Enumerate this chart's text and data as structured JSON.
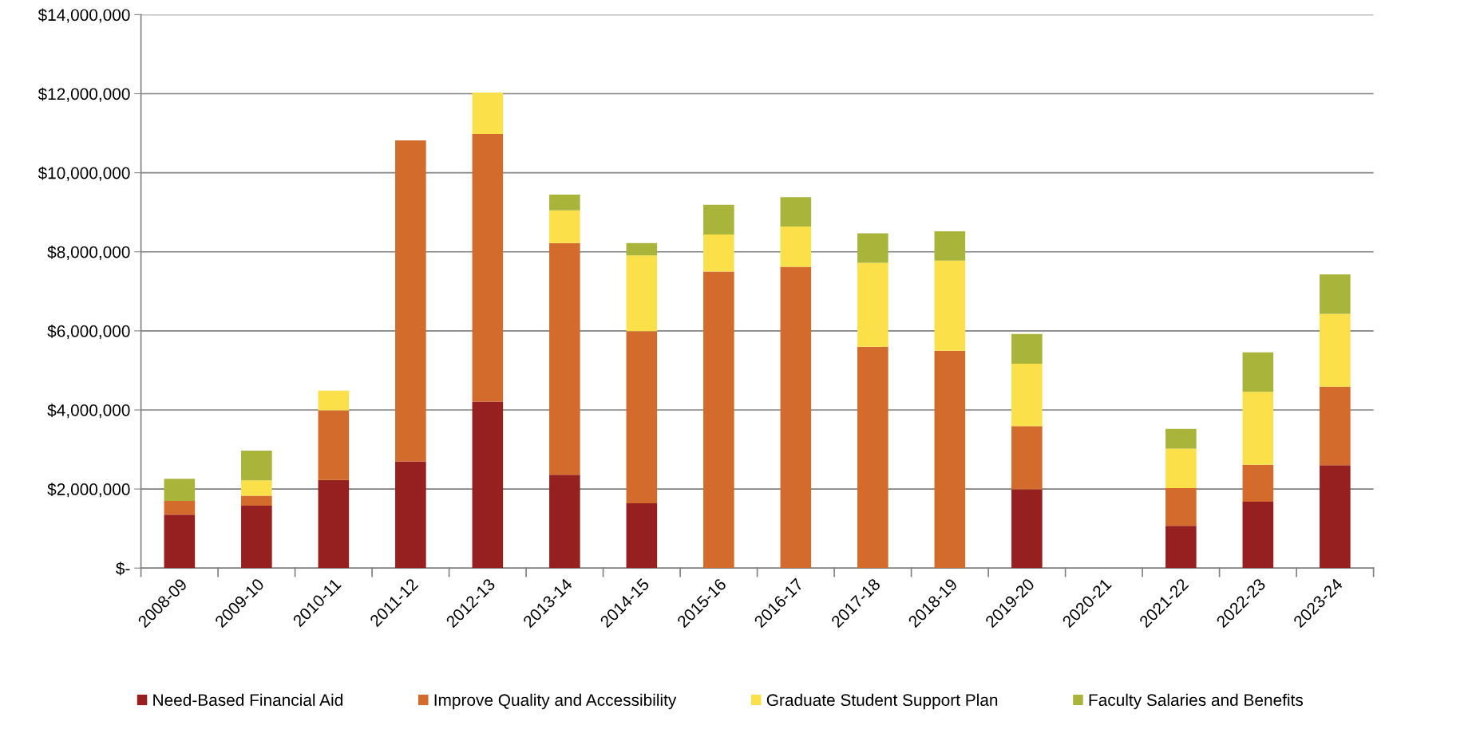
{
  "chart_data": {
    "type": "bar",
    "stacked": true,
    "categories": [
      "2008-09",
      "2009-10",
      "2010-11",
      "2011-12",
      "2012-13",
      "2013-14",
      "2014-15",
      "2015-16",
      "2016-17",
      "2017-18",
      "2018-19",
      "2019-20",
      "2020-21",
      "2021-22",
      "2022-23",
      "2023-24"
    ],
    "series": [
      {
        "name": "Need-Based Financial Aid",
        "color": "#95201f",
        "values": [
          1350000,
          1580000,
          2230000,
          2700000,
          4210000,
          2360000,
          1640000,
          null,
          null,
          null,
          null,
          1990000,
          null,
          1070000,
          1680000,
          2600000
        ]
      },
      {
        "name": "Improve Quality and Accessibility",
        "color": "#d26b2b",
        "values": [
          350000,
          250000,
          1760000,
          8120000,
          6770000,
          5860000,
          4350000,
          7500000,
          7620000,
          5600000,
          5500000,
          1600000,
          null,
          950000,
          930000,
          1990000
        ]
      },
      {
        "name": "Graduate Student Support Plan",
        "color": "#fce04a",
        "values": [
          null,
          390000,
          500000,
          null,
          1050000,
          830000,
          1920000,
          940000,
          1020000,
          2120000,
          2280000,
          1580000,
          null,
          1000000,
          1850000,
          1840000
        ]
      },
      {
        "name": "Faculty Salaries and Benefits",
        "color": "#a8b43a",
        "values": [
          560000,
          750000,
          null,
          null,
          null,
          400000,
          310000,
          750000,
          740000,
          750000,
          740000,
          750000,
          null,
          500000,
          1000000,
          1000000
        ]
      }
    ],
    "ylim": [
      0,
      14000000
    ],
    "yticks": [
      {
        "value": 0,
        "label": "$-"
      },
      {
        "value": 2000000,
        "label": "$2,000,000"
      },
      {
        "value": 4000000,
        "label": "$4,000,000"
      },
      {
        "value": 6000000,
        "label": "$6,000,000"
      },
      {
        "value": 8000000,
        "label": "$8,000,000"
      },
      {
        "value": 10000000,
        "label": "$10,000,000"
      },
      {
        "value": 12000000,
        "label": "$12,000,000"
      },
      {
        "value": 14000000,
        "label": "$14,000,000"
      }
    ],
    "grid": "y",
    "legend": "bottom"
  }
}
